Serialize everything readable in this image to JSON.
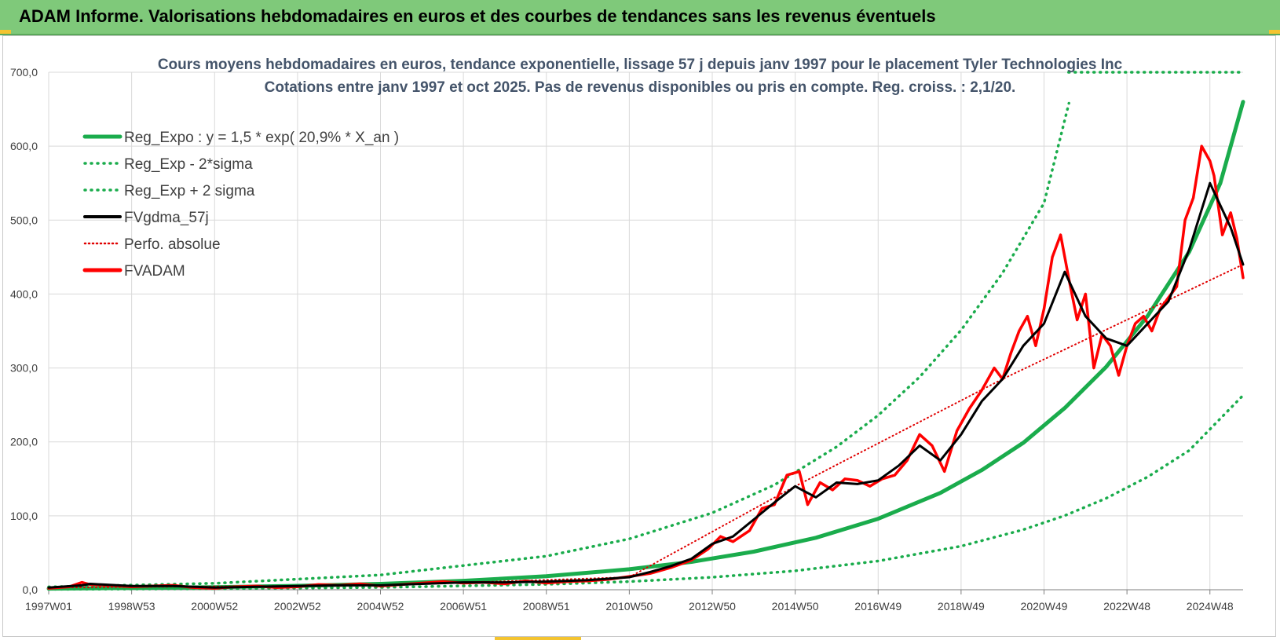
{
  "header": {
    "title": "ADAM Informe. Valorisations hebdomadaires en euros et des courbes de tendances sans les revenus éventuels"
  },
  "chart_data": {
    "type": "line",
    "title_line1": "Cours moyens hebdomadaires en euros, tendance exponentielle, lissage 57 j depuis janv 1997 pour le placement Tyler Technologies Inc",
    "title_line2": "Cotations entre janv 1997 et oct 2025. Pas de revenus disponibles ou pris en compte. Reg. croiss. : 2,1/20.",
    "xlabel": "",
    "ylabel": "",
    "x_range": [
      1997.0,
      2025.8
    ],
    "ylim": [
      0,
      700
    ],
    "y_ticks": [
      0,
      100,
      200,
      300,
      400,
      500,
      600,
      700
    ],
    "y_tick_labels": [
      "0,0",
      "100,0",
      "200,0",
      "300,0",
      "400,0",
      "500,0",
      "600,0",
      "700,0"
    ],
    "x_ticks": [
      1997.0,
      1999.0,
      2001.0,
      2003.0,
      2005.0,
      2007.0,
      2009.0,
      2011.0,
      2013.0,
      2015.0,
      2017.0,
      2019.0,
      2021.0,
      2023.0,
      2025.0
    ],
    "x_tick_labels": [
      "1997W01",
      "1998W53",
      "2000W52",
      "2002W52",
      "2004W52",
      "2006W51",
      "2008W51",
      "2010W50",
      "2012W50",
      "2014W50",
      "2016W49",
      "2018W49",
      "2020W49",
      "2022W48",
      "2024W48"
    ],
    "grid": true,
    "legend_position": "top-left",
    "legend": [
      {
        "label": "Reg_Expo : y = 1,5 * exp( 20,9% *  X_an )",
        "color": "#1aac4c",
        "style": "solid-thick"
      },
      {
        "label": "Reg_Exp - 2*sigma",
        "color": "#1aac4c",
        "style": "dotted"
      },
      {
        "label": "Reg_Exp + 2 sigma",
        "color": "#1aac4c",
        "style": "dotted"
      },
      {
        "label": "FVgdma_57j",
        "color": "#000000",
        "style": "solid"
      },
      {
        "label": "Perfo. absolue",
        "color": "#e00000",
        "style": "dotted"
      },
      {
        "label": "FVADAM",
        "color": "#ff0000",
        "style": "solid-thick"
      }
    ],
    "series": [
      {
        "name": "Reg_Expo",
        "color": "#1aac4c",
        "x": [
          1997.0,
          1999.0,
          2001.0,
          2003.0,
          2005.0,
          2007.0,
          2009.0,
          2011.0,
          2012.5,
          2014.0,
          2015.5,
          2017.0,
          2018.5,
          2019.5,
          2020.5,
          2021.5,
          2022.5,
          2023.5,
          2024.5,
          2025.25,
          2025.8
        ],
        "y": [
          1.5,
          2.3,
          3.5,
          5.3,
          8.0,
          12.1,
          18.3,
          27.7,
          37.7,
          51.5,
          70.3,
          96.0,
          131.0,
          161.9,
          198.7,
          245.8,
          301.6,
          370.4,
          457.0,
          550.0,
          660.0
        ]
      },
      {
        "name": "Reg_Exp - 2*sigma",
        "color": "#1aac4c",
        "x": [
          1997.0,
          2001.0,
          2005.0,
          2009.0,
          2011.0,
          2013.0,
          2015.0,
          2017.0,
          2019.0,
          2020.5,
          2021.5,
          2022.5,
          2023.5,
          2024.5,
          2025.8
        ],
        "y": [
          0.6,
          1.4,
          3.2,
          7.3,
          11.1,
          16.9,
          25.6,
          38.9,
          59.0,
          81.3,
          100.3,
          123.8,
          152.6,
          188.3,
          263.0
        ]
      },
      {
        "name": "Reg_Exp + 2 sigma",
        "color": "#1aac4c",
        "x": [
          1997.0,
          2001.0,
          2005.0,
          2009.0,
          2011.0,
          2013.0,
          2014.5,
          2016.0,
          2017.0,
          2018.0,
          2019.0,
          2020.0,
          2021.0,
          2021.6
        ],
        "y": [
          3.8,
          8.7,
          20.0,
          45.5,
          68.8,
          104.0,
          141.8,
          193.3,
          235.9,
          287.8,
          351.2,
          428.5,
          523.0,
          658.0
        ],
        "note": "the curve leaves the plot at the top; the dotted line continues at the 700 level"
      },
      {
        "name": "FVgdma_57j",
        "color": "#000000",
        "x": [
          1997.0,
          1997.8,
          1998.0,
          1999.0,
          2000.0,
          2001.0,
          2002.0,
          2003.0,
          2004.0,
          2005.0,
          2006.0,
          2007.0,
          2008.0,
          2009.0,
          2010.0,
          2011.0,
          2011.5,
          2012.0,
          2012.5,
          2013.0,
          2013.5,
          2014.0,
          2014.5,
          2015.0,
          2015.5,
          2016.0,
          2016.5,
          2017.0,
          2017.5,
          2018.0,
          2018.5,
          2019.0,
          2019.5,
          2020.0,
          2020.5,
          2021.0,
          2021.5,
          2022.0,
          2022.5,
          2023.0,
          2023.5,
          2024.0,
          2024.5,
          2025.0,
          2025.5,
          2025.8
        ],
        "y": [
          3,
          6,
          8,
          5,
          5,
          3,
          4,
          5,
          6,
          6,
          8,
          10,
          10,
          11,
          13,
          17,
          24,
          32,
          42,
          62,
          72,
          95,
          118,
          140,
          125,
          145,
          143,
          148,
          168,
          195,
          175,
          210,
          255,
          285,
          330,
          360,
          430,
          370,
          340,
          330,
          360,
          390,
          460,
          550,
          490,
          440
        ]
      },
      {
        "name": "Perfo. absolue",
        "color": "#e00000",
        "x": [
          1997.0,
          2005.0,
          2011.0,
          2015.0,
          2020.0,
          2025.8
        ],
        "y": [
          3,
          6,
          17,
          140,
          285,
          440
        ],
        "note": "hidden under FVADAM"
      },
      {
        "name": "FVADAM",
        "color": "#ff0000",
        "x": [
          1997.0,
          1997.5,
          1997.8,
          1998.0,
          1998.5,
          1999.0,
          1999.5,
          2000.0,
          2000.5,
          2001.0,
          2001.5,
          2002.0,
          2002.5,
          2003.0,
          2003.5,
          2004.0,
          2004.5,
          2005.0,
          2005.5,
          2006.0,
          2006.5,
          2007.0,
          2007.5,
          2008.0,
          2008.5,
          2009.0,
          2009.5,
          2010.0,
          2010.5,
          2011.0,
          2011.5,
          2012.0,
          2012.5,
          2012.9,
          2013.2,
          2013.5,
          2013.9,
          2014.2,
          2014.5,
          2014.8,
          2015.1,
          2015.3,
          2015.6,
          2015.9,
          2016.2,
          2016.5,
          2016.8,
          2017.1,
          2017.4,
          2017.7,
          2018.0,
          2018.3,
          2018.6,
          2018.9,
          2019.2,
          2019.5,
          2019.8,
          2020.0,
          2020.2,
          2020.4,
          2020.6,
          2020.8,
          2021.0,
          2021.2,
          2021.4,
          2021.6,
          2021.8,
          2022.0,
          2022.2,
          2022.4,
          2022.6,
          2022.8,
          2023.0,
          2023.2,
          2023.4,
          2023.6,
          2023.8,
          2024.0,
          2024.2,
          2024.4,
          2024.6,
          2024.8,
          2025.0,
          2025.1,
          2025.3,
          2025.5,
          2025.65,
          2025.8
        ],
        "y": [
          2,
          4,
          10,
          7,
          6,
          4,
          5,
          6,
          3,
          2,
          4,
          5,
          3,
          4,
          7,
          6,
          8,
          5,
          7,
          9,
          11,
          9,
          10,
          8,
          12,
          9,
          11,
          12,
          14,
          18,
          22,
          30,
          40,
          55,
          72,
          65,
          80,
          110,
          115,
          155,
          160,
          115,
          145,
          135,
          150,
          148,
          140,
          150,
          155,
          175,
          210,
          195,
          160,
          215,
          245,
          270,
          300,
          285,
          320,
          350,
          370,
          330,
          380,
          450,
          480,
          420,
          365,
          400,
          300,
          345,
          330,
          290,
          330,
          360,
          370,
          350,
          380,
          395,
          410,
          500,
          530,
          600,
          580,
          560,
          480,
          510,
          475,
          422
        ]
      }
    ]
  }
}
